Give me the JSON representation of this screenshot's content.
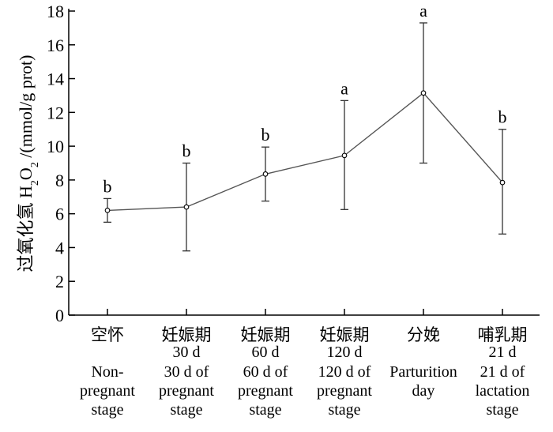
{
  "chart_data": {
    "type": "line",
    "title": "",
    "ylabel_cn": "过氧化氢",
    "ylabel_en": "H2O2 /(mmol/g prot)",
    "ylim": [
      0,
      18
    ],
    "yticks": [
      0,
      2,
      4,
      6,
      8,
      10,
      12,
      14,
      16,
      18
    ],
    "grid": false,
    "categories": [
      {
        "cn": "空怀",
        "days": "",
        "en": [
          "Non-",
          "pregnant",
          "stage"
        ]
      },
      {
        "cn": "妊娠期",
        "days": "30 d",
        "en": [
          "30 d of",
          "pregnant",
          "stage"
        ]
      },
      {
        "cn": "妊娠期",
        "days": "60 d",
        "en": [
          "60 d of",
          "pregnant",
          "stage"
        ]
      },
      {
        "cn": "妊娠期",
        "days": "120 d",
        "en": [
          "120 d of",
          "pregnant",
          "stage"
        ]
      },
      {
        "cn": "分娩",
        "days": "",
        "en": [
          "Parturition",
          "day"
        ]
      },
      {
        "cn": "哺乳期",
        "days": "21 d",
        "en": [
          "21 d of",
          "lactation",
          "stage"
        ]
      }
    ],
    "series": [
      {
        "values": [
          6.2,
          6.4,
          8.35,
          9.45,
          13.15,
          7.85
        ],
        "err_low": [
          5.5,
          3.8,
          6.75,
          6.25,
          9.0,
          4.8
        ],
        "err_high": [
          6.9,
          9.0,
          9.95,
          12.7,
          17.3,
          11.0
        ],
        "labels": [
          "b",
          "b",
          "b",
          "a",
          "a",
          "b"
        ]
      }
    ]
  }
}
